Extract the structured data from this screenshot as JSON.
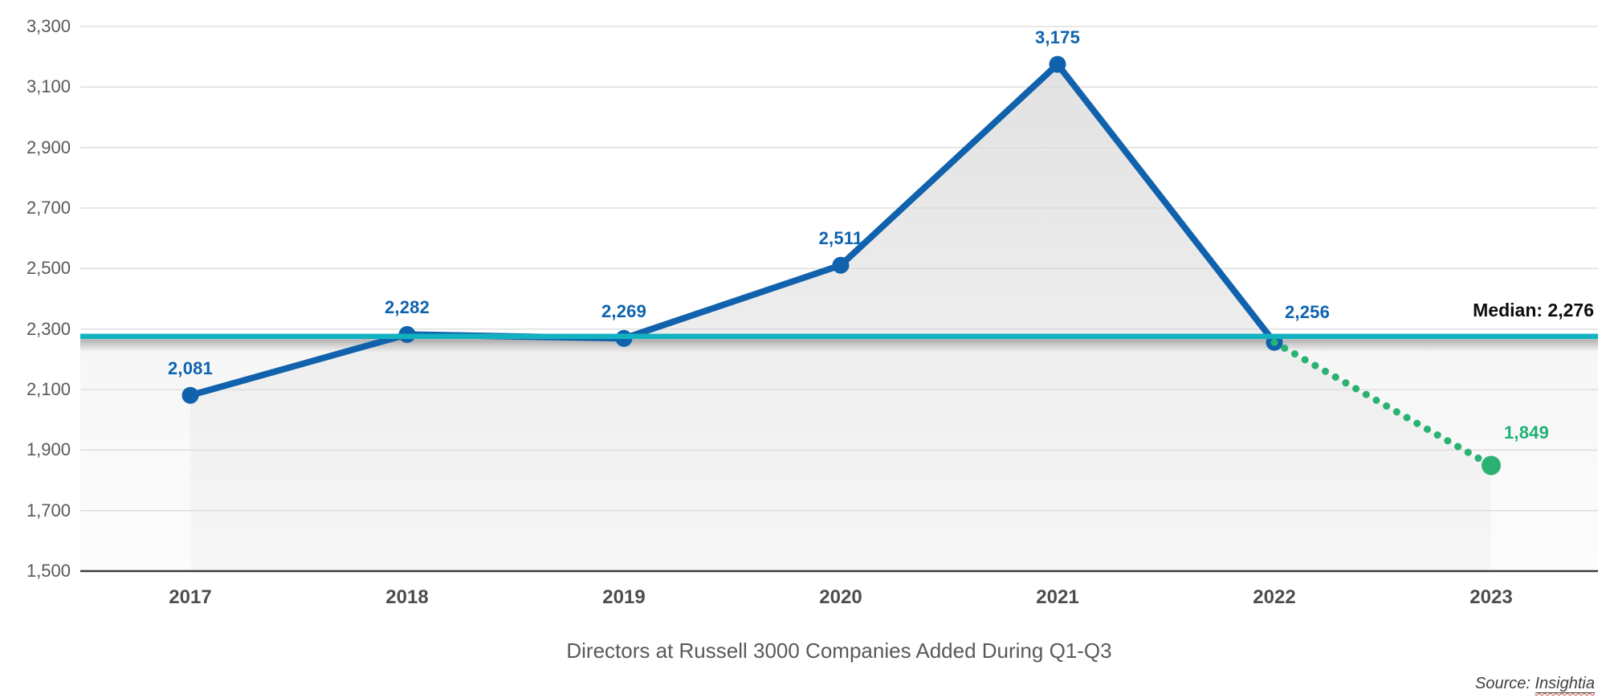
{
  "title": "Directors at Russell 3000 Companies Added During Q1-Q3",
  "source": {
    "prefix": "Source: ",
    "name": "Insightia"
  },
  "chart_data": {
    "type": "line",
    "title": "Directors at Russell 3000 Companies Added During Q1-Q3",
    "categories": [
      "2017",
      "2018",
      "2019",
      "2020",
      "2021",
      "2022",
      "2023"
    ],
    "series": [
      {
        "name": "directors-added-actual",
        "style": "solid",
        "color": "#1062AC",
        "label_color": "#0E63AF",
        "start_index": 0,
        "values": [
          2081,
          2282,
          2269,
          2511,
          3175,
          2256
        ],
        "labels": [
          "2,081",
          "2,282",
          "2,269",
          "2,511",
          "3,175",
          "2,256"
        ]
      },
      {
        "name": "directors-added-projection",
        "style": "dotted",
        "color": "#2BB273",
        "label_color": "#1FB173",
        "start_index": 5,
        "values": [
          2256,
          1849
        ],
        "labels": [
          null,
          "1,849"
        ]
      }
    ],
    "median_line": {
      "value": 2276,
      "label": "Median: 2,276",
      "color": "#12B2C1"
    },
    "ylim": [
      1500,
      3300
    ],
    "ytick_step": 200,
    "yticks": [
      {
        "value": 3300,
        "label": "3,300"
      },
      {
        "value": 3100,
        "label": "3,100"
      },
      {
        "value": 2900,
        "label": "2,900"
      },
      {
        "value": 2700,
        "label": "2,700"
      },
      {
        "value": 2500,
        "label": "2,500"
      },
      {
        "value": 2300,
        "label": "2,300"
      },
      {
        "value": 2100,
        "label": "2,100"
      },
      {
        "value": 1900,
        "label": "1,900"
      },
      {
        "value": 1700,
        "label": "1,700"
      },
      {
        "value": 1500,
        "label": "1,500"
      }
    ],
    "grid": true,
    "legend": false,
    "colors": {
      "gridline": "#DBDBDB",
      "axis": "#3D3D3D",
      "area_fill_top": "#E2E2E2",
      "area_fill_bottom": "#F7F7F7"
    }
  }
}
